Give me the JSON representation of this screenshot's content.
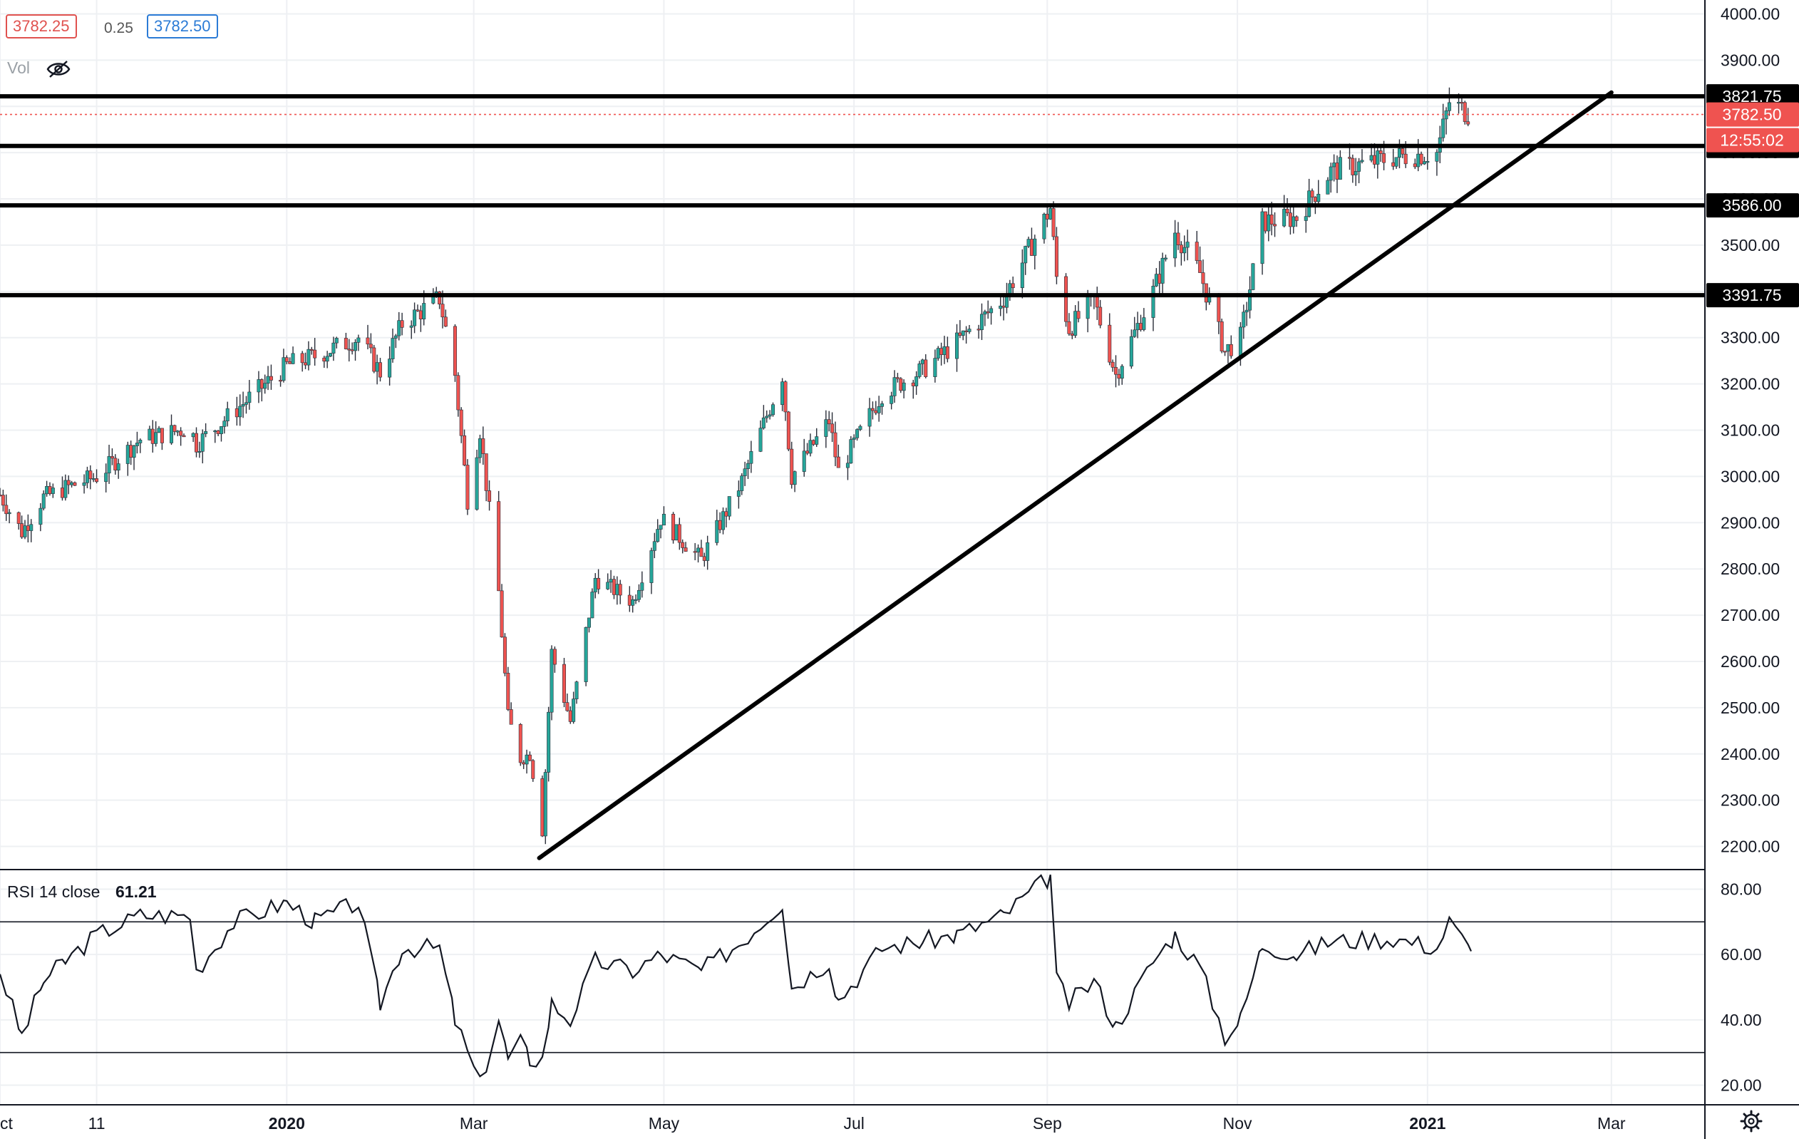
{
  "header": {
    "bid": "3782.25",
    "spread": "0.25",
    "ask": "3782.50",
    "volume_label": "Vol",
    "volume_icon": "eye-off-icon"
  },
  "rsi": {
    "label": "RSI 14 close",
    "value": "61.21"
  },
  "settings_icon": "gear-icon",
  "colors": {
    "up": "#26a69a",
    "down": "#ef5350",
    "line": "#000000",
    "grid": "#eef0f3",
    "last_price": "#ef5350",
    "bid": "#e0524f",
    "ask": "#2b7bd6"
  },
  "chart_data": [
    {
      "type": "candlestick",
      "x_axis": {
        "range": [
          "2019-10-01",
          "2021-03-31"
        ],
        "tick_labels": [
          {
            "label": "Oct",
            "date": "2019-10-01"
          },
          {
            "label": "11",
            "date": "2019-11-01"
          },
          {
            "label": "2020",
            "date": "2020-01-01",
            "bold": true
          },
          {
            "label": "Mar",
            "date": "2020-03-01"
          },
          {
            "label": "May",
            "date": "2020-05-01"
          },
          {
            "label": "Jul",
            "date": "2020-07-01"
          },
          {
            "label": "Sep",
            "date": "2020-09-01"
          },
          {
            "label": "Nov",
            "date": "2020-11-01"
          },
          {
            "label": "2021",
            "date": "2021-01-01",
            "bold": true
          },
          {
            "label": "Mar",
            "date": "2021-03-01"
          }
        ]
      },
      "y_axis": {
        "range": [
          2150,
          4030
        ],
        "ticks": [
          "2200.00",
          "2300.00",
          "2400.00",
          "2500.00",
          "2600.00",
          "2700.00",
          "2800.00",
          "2900.00",
          "3000.00",
          "3100.00",
          "3200.00",
          "3300.00",
          "3400.00",
          "3500.00",
          "3600.00",
          "3700.00",
          "3800.00",
          "3900.00",
          "4000.00"
        ]
      },
      "close_path": [
        [
          "2019-10-01",
          2960
        ],
        [
          "2019-10-08",
          2880
        ],
        [
          "2019-10-15",
          2955
        ],
        [
          "2019-10-22",
          2975
        ],
        [
          "2019-11-01",
          3000
        ],
        [
          "2019-11-15",
          3080
        ],
        [
          "2019-12-01",
          3105
        ],
        [
          "2019-12-03",
          3070
        ],
        [
          "2019-12-15",
          3140
        ],
        [
          "2020-01-01",
          3240
        ],
        [
          "2020-01-10",
          3260
        ],
        [
          "2020-01-24",
          3300
        ],
        [
          "2020-01-31",
          3225
        ],
        [
          "2020-02-07",
          3330
        ],
        [
          "2020-02-19",
          3385
        ],
        [
          "2020-02-24",
          3220
        ],
        [
          "2020-02-28",
          2950
        ],
        [
          "2020-03-03",
          3100
        ],
        [
          "2020-03-09",
          2750
        ],
        [
          "2020-03-12",
          2480
        ],
        [
          "2020-03-16",
          2390
        ],
        [
          "2020-03-19",
          2400
        ],
        [
          "2020-03-23",
          2235
        ],
        [
          "2020-03-26",
          2620
        ],
        [
          "2020-04-01",
          2470
        ],
        [
          "2020-04-09",
          2780
        ],
        [
          "2020-04-21",
          2730
        ],
        [
          "2020-04-30",
          2910
        ],
        [
          "2020-05-13",
          2820
        ],
        [
          "2020-05-26",
          2990
        ],
        [
          "2020-06-08",
          3220
        ],
        [
          "2020-06-11",
          3000
        ],
        [
          "2020-06-23",
          3120
        ],
        [
          "2020-06-26",
          3010
        ],
        [
          "2020-07-10",
          3180
        ],
        [
          "2020-07-23",
          3230
        ],
        [
          "2020-08-03",
          3290
        ],
        [
          "2020-08-18",
          3385
        ],
        [
          "2020-09-02",
          3580
        ],
        [
          "2020-09-04",
          3430
        ],
        [
          "2020-09-08",
          3320
        ],
        [
          "2020-09-16",
          3380
        ],
        [
          "2020-09-23",
          3220
        ],
        [
          "2020-10-05",
          3400
        ],
        [
          "2020-10-12",
          3530
        ],
        [
          "2020-10-20",
          3440
        ],
        [
          "2020-10-28",
          3270
        ],
        [
          "2020-11-02",
          3300
        ],
        [
          "2020-11-09",
          3550
        ],
        [
          "2020-11-20",
          3560
        ],
        [
          "2020-12-01",
          3660
        ],
        [
          "2020-12-21",
          3690
        ],
        [
          "2021-01-04",
          3700
        ],
        [
          "2021-01-08",
          3810
        ],
        [
          "2021-01-15",
          3782
        ]
      ],
      "horizontal_levels": [
        "3821.75",
        "3714.50",
        "3586.00",
        "3391.75"
      ],
      "last_price": "3782.50",
      "countdown": "12:55:02",
      "trendline": [
        [
          "2020-03-22",
          2175
        ],
        [
          "2021-03-01",
          3830
        ]
      ]
    },
    {
      "type": "line",
      "name": "RSI 14 close",
      "y_axis": {
        "range": [
          14,
          86
        ],
        "ticks": [
          "20.00",
          "40.00",
          "60.00",
          "80.00"
        ]
      },
      "bands": [
        30,
        70
      ],
      "x": [
        "2019-10-01",
        "2019-10-08",
        "2019-10-15",
        "2019-10-22",
        "2019-11-01",
        "2019-11-15",
        "2019-12-01",
        "2019-12-03",
        "2019-12-15",
        "2020-01-01",
        "2020-01-10",
        "2020-01-24",
        "2020-01-31",
        "2020-02-07",
        "2020-02-19",
        "2020-02-24",
        "2020-02-28",
        "2020-03-03",
        "2020-03-09",
        "2020-03-12",
        "2020-03-16",
        "2020-03-19",
        "2020-03-23",
        "2020-03-26",
        "2020-04-01",
        "2020-04-09",
        "2020-04-21",
        "2020-04-30",
        "2020-05-13",
        "2020-05-26",
        "2020-06-08",
        "2020-06-11",
        "2020-06-23",
        "2020-06-26",
        "2020-07-10",
        "2020-07-23",
        "2020-08-03",
        "2020-08-18",
        "2020-09-02",
        "2020-09-04",
        "2020-09-08",
        "2020-09-16",
        "2020-09-23",
        "2020-10-05",
        "2020-10-12",
        "2020-10-20",
        "2020-10-28",
        "2020-11-02",
        "2020-11-09",
        "2020-11-20",
        "2020-12-01",
        "2020-12-21",
        "2021-01-04",
        "2021-01-08",
        "2021-01-15"
      ],
      "values": [
        55,
        35,
        52,
        58,
        66,
        72,
        72,
        55,
        70,
        76,
        70,
        76,
        45,
        62,
        62,
        40,
        30,
        20,
        40,
        28,
        33,
        28,
        28,
        45,
        40,
        58,
        55,
        60,
        55,
        64,
        76,
        50,
        58,
        46,
        62,
        64,
        66,
        72,
        84,
        52,
        45,
        52,
        38,
        58,
        66,
        56,
        35,
        40,
        63,
        60,
        64,
        65,
        62,
        70,
        61
      ]
    }
  ]
}
